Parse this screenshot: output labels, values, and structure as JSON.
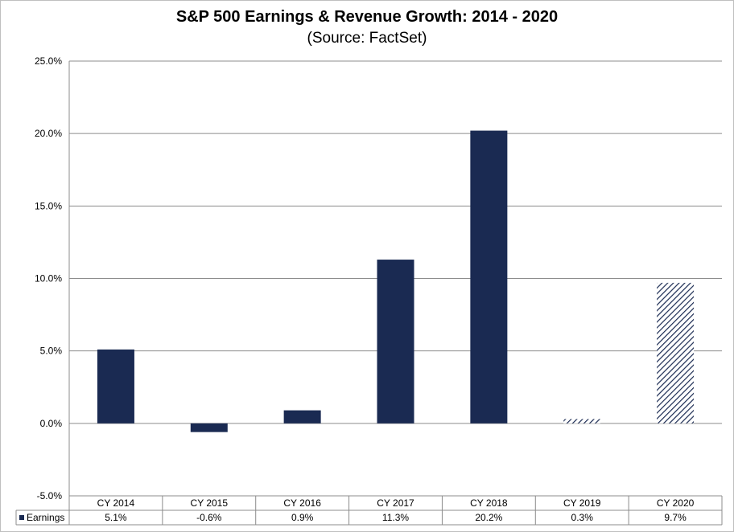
{
  "chart_data": {
    "type": "bar",
    "title": "S&P 500 Earnings & Revenue Growth:  2014 - 2020",
    "subtitle": "(Source: FactSet)",
    "categories": [
      "CY 2014",
      "CY 2015",
      "CY 2016",
      "CY 2017",
      "CY 2018",
      "CY 2019",
      "CY 2020"
    ],
    "series": [
      {
        "name": "Earnings",
        "values": [
          5.1,
          -0.6,
          0.9,
          11.3,
          20.2,
          0.3,
          9.7
        ],
        "labels": [
          "5.1%",
          "-0.6%",
          "0.9%",
          "11.3%",
          "20.2%",
          "0.3%",
          "9.7%"
        ],
        "color": "#1a2a52",
        "estimate_flags": [
          false,
          false,
          false,
          false,
          false,
          true,
          true
        ]
      }
    ],
    "ylim": [
      -5,
      25
    ],
    "yticks": [
      -5,
      0,
      5,
      10,
      15,
      20,
      25
    ],
    "ytick_labels": [
      "-5.0%",
      "0.0%",
      "5.0%",
      "10.0%",
      "15.0%",
      "20.0%",
      "25.0%"
    ],
    "grid": true,
    "legend": "data-table-left"
  }
}
